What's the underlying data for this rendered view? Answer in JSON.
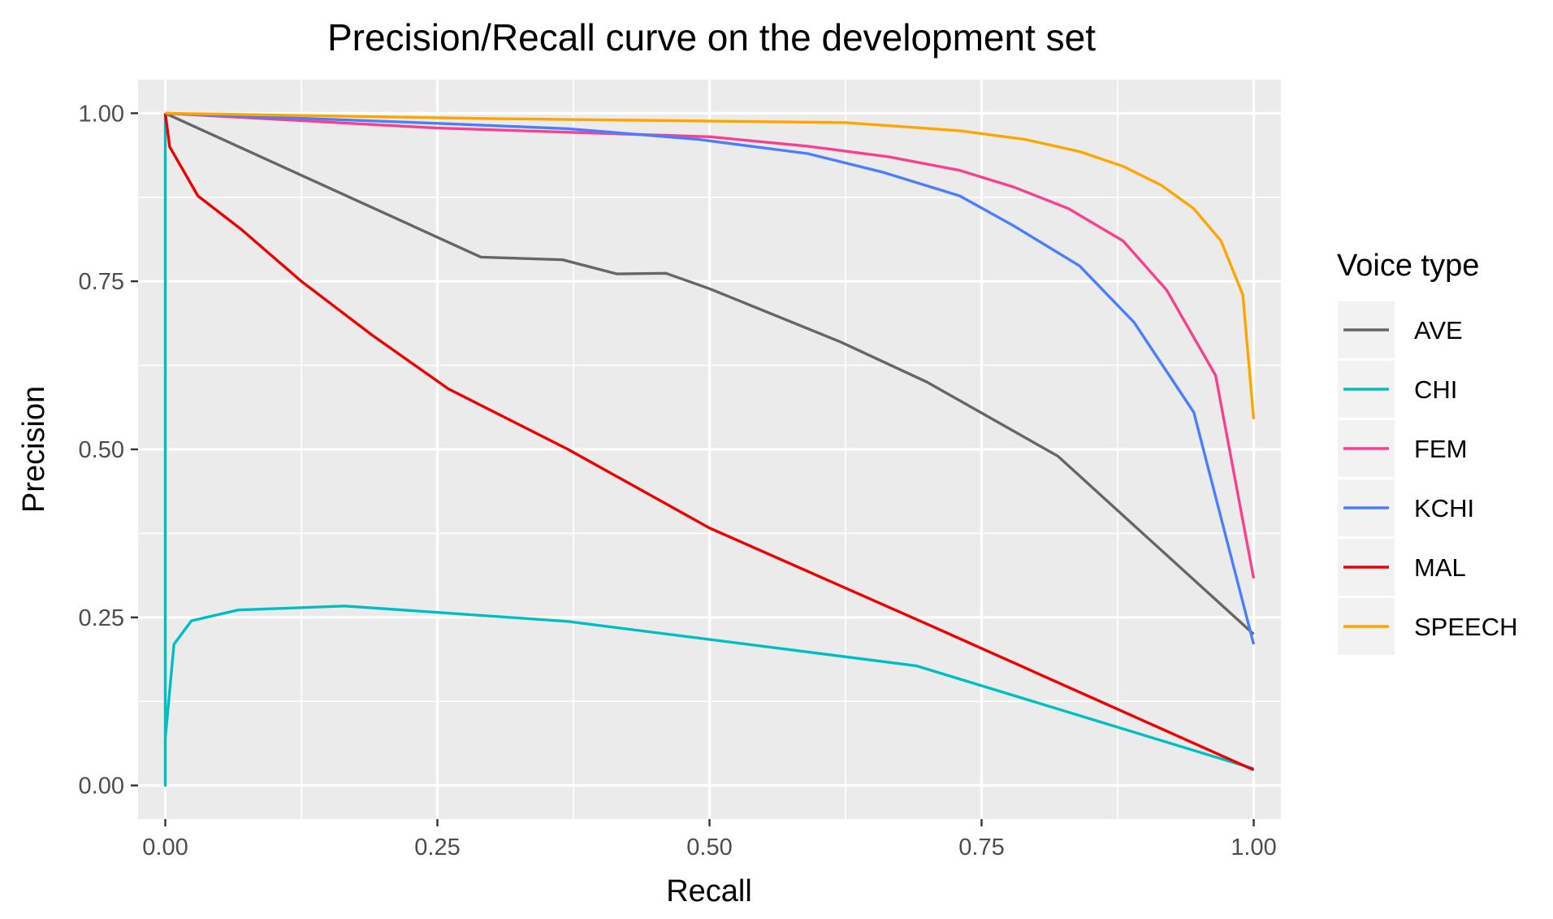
{
  "chart_data": {
    "type": "line",
    "title": "Precision/Recall curve on the development set",
    "xlabel": "Recall",
    "ylabel": "Precision",
    "xlim": [
      -0.025,
      1.025
    ],
    "ylim": [
      -0.05,
      1.05
    ],
    "xticks": [
      "0.00",
      "0.25",
      "0.50",
      "0.75",
      "1.00"
    ],
    "yticks": [
      "0.00",
      "0.25",
      "0.50",
      "0.75",
      "1.00"
    ],
    "grid": true,
    "legend": {
      "title": "Voice type",
      "position": "right"
    },
    "series": [
      {
        "name": "AVE",
        "color": "#666666",
        "x": [
          0.0,
          0.29,
          0.365,
          0.415,
          0.46,
          0.5,
          0.62,
          0.7,
          0.82,
          1.0
        ],
        "y": [
          1.0,
          0.786,
          0.782,
          0.761,
          0.762,
          0.739,
          0.66,
          0.6,
          0.49,
          0.225
        ]
      },
      {
        "name": "CHI",
        "color": "#00BFC4",
        "x": [
          0.0,
          0.0,
          0.0,
          0.008,
          0.024,
          0.067,
          0.165,
          0.37,
          0.69,
          1.0
        ],
        "y": [
          1.0,
          0.0,
          0.07,
          0.21,
          0.245,
          0.261,
          0.267,
          0.244,
          0.178,
          0.025
        ]
      },
      {
        "name": "FEM",
        "color": "#F8418E",
        "x": [
          0.0,
          0.25,
          0.5,
          0.59,
          0.665,
          0.73,
          0.78,
          0.83,
          0.88,
          0.92,
          0.965,
          1.0
        ],
        "y": [
          1.0,
          0.978,
          0.965,
          0.951,
          0.935,
          0.915,
          0.89,
          0.858,
          0.81,
          0.737,
          0.61,
          0.308
        ]
      },
      {
        "name": "KCHI",
        "color": "#4A7EFF",
        "x": [
          0.0,
          0.25,
          0.37,
          0.49,
          0.59,
          0.66,
          0.73,
          0.78,
          0.84,
          0.89,
          0.945,
          1.0
        ],
        "y": [
          1.0,
          0.985,
          0.977,
          0.961,
          0.94,
          0.912,
          0.877,
          0.832,
          0.773,
          0.689,
          0.555,
          0.21
        ]
      },
      {
        "name": "MAL",
        "color": "#EE0000",
        "x": [
          0.0,
          0.004,
          0.03,
          0.07,
          0.125,
          0.19,
          0.26,
          0.37,
          0.5,
          0.7,
          1.0
        ],
        "y": [
          1.0,
          0.95,
          0.877,
          0.827,
          0.75,
          0.67,
          0.59,
          0.5,
          0.383,
          0.24,
          0.023
        ]
      },
      {
        "name": "SPEECH",
        "color": "#FFA500",
        "x": [
          0.0,
          0.3,
          0.625,
          0.73,
          0.79,
          0.84,
          0.88,
          0.915,
          0.945,
          0.97,
          0.99,
          1.0
        ],
        "y": [
          1.0,
          0.992,
          0.986,
          0.974,
          0.961,
          0.943,
          0.921,
          0.893,
          0.858,
          0.81,
          0.73,
          0.545
        ]
      }
    ]
  }
}
